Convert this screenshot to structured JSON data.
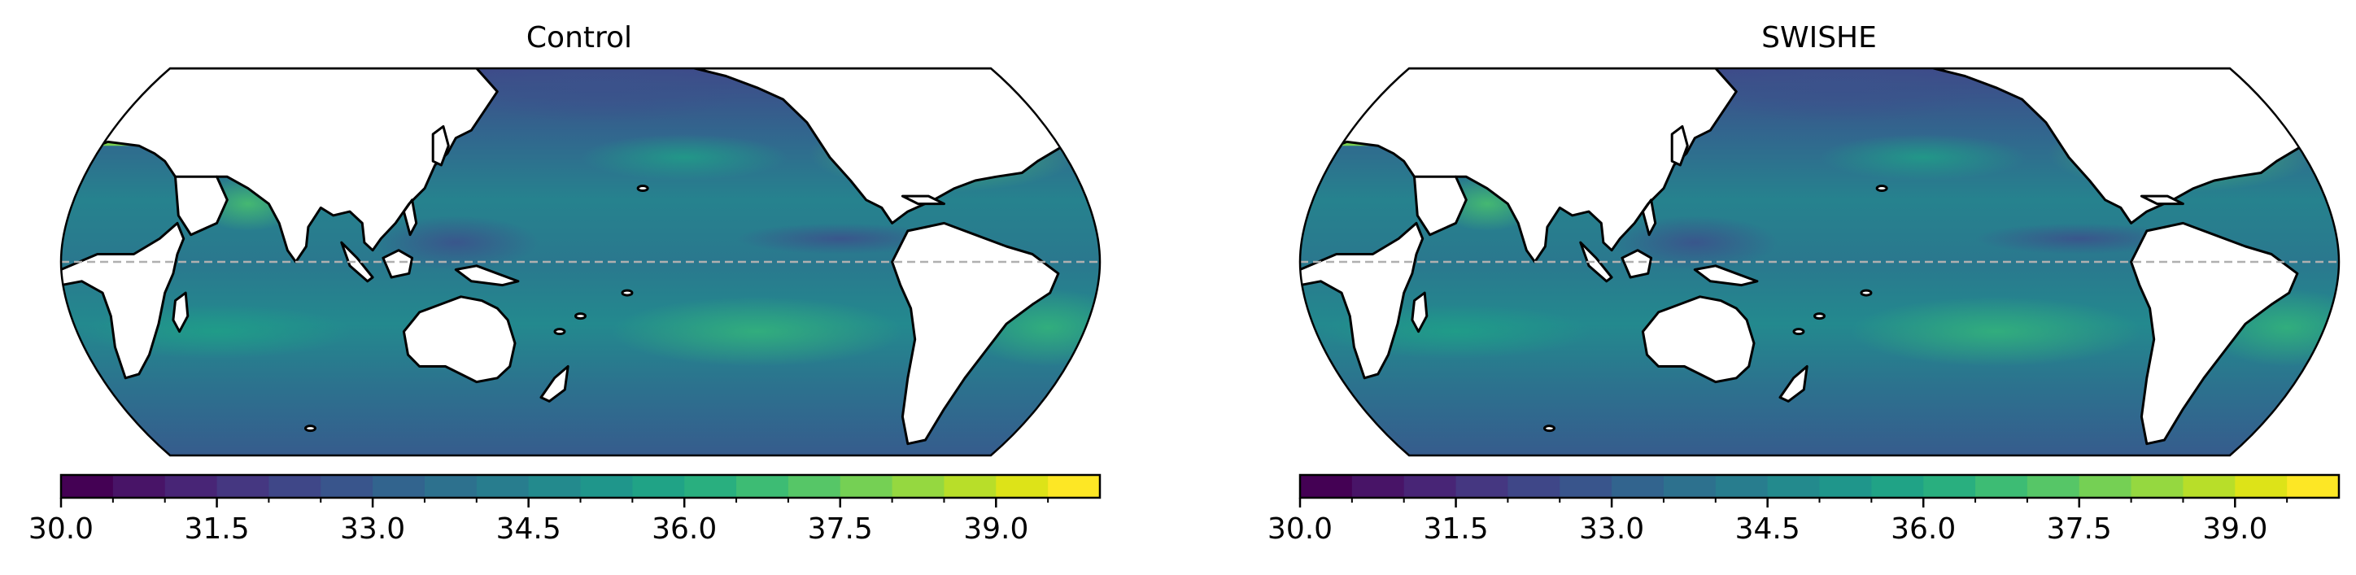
{
  "panels": [
    {
      "title": "Control"
    },
    {
      "title": "SWISHE"
    }
  ],
  "colorbar": {
    "colormap": "viridis",
    "min": 30.0,
    "max": 40.0,
    "levels": 20,
    "tick_labels": [
      "30.0",
      "31.5",
      "33.0",
      "34.5",
      "36.0",
      "37.5",
      "39.0"
    ]
  },
  "map": {
    "projection": "Robinson (Pacific-centered)",
    "land_color": "#ffffff",
    "coastline_color": "#000000",
    "equator_line": "dashed gray"
  },
  "colors": {
    "equator": "#b0b0b0"
  }
}
